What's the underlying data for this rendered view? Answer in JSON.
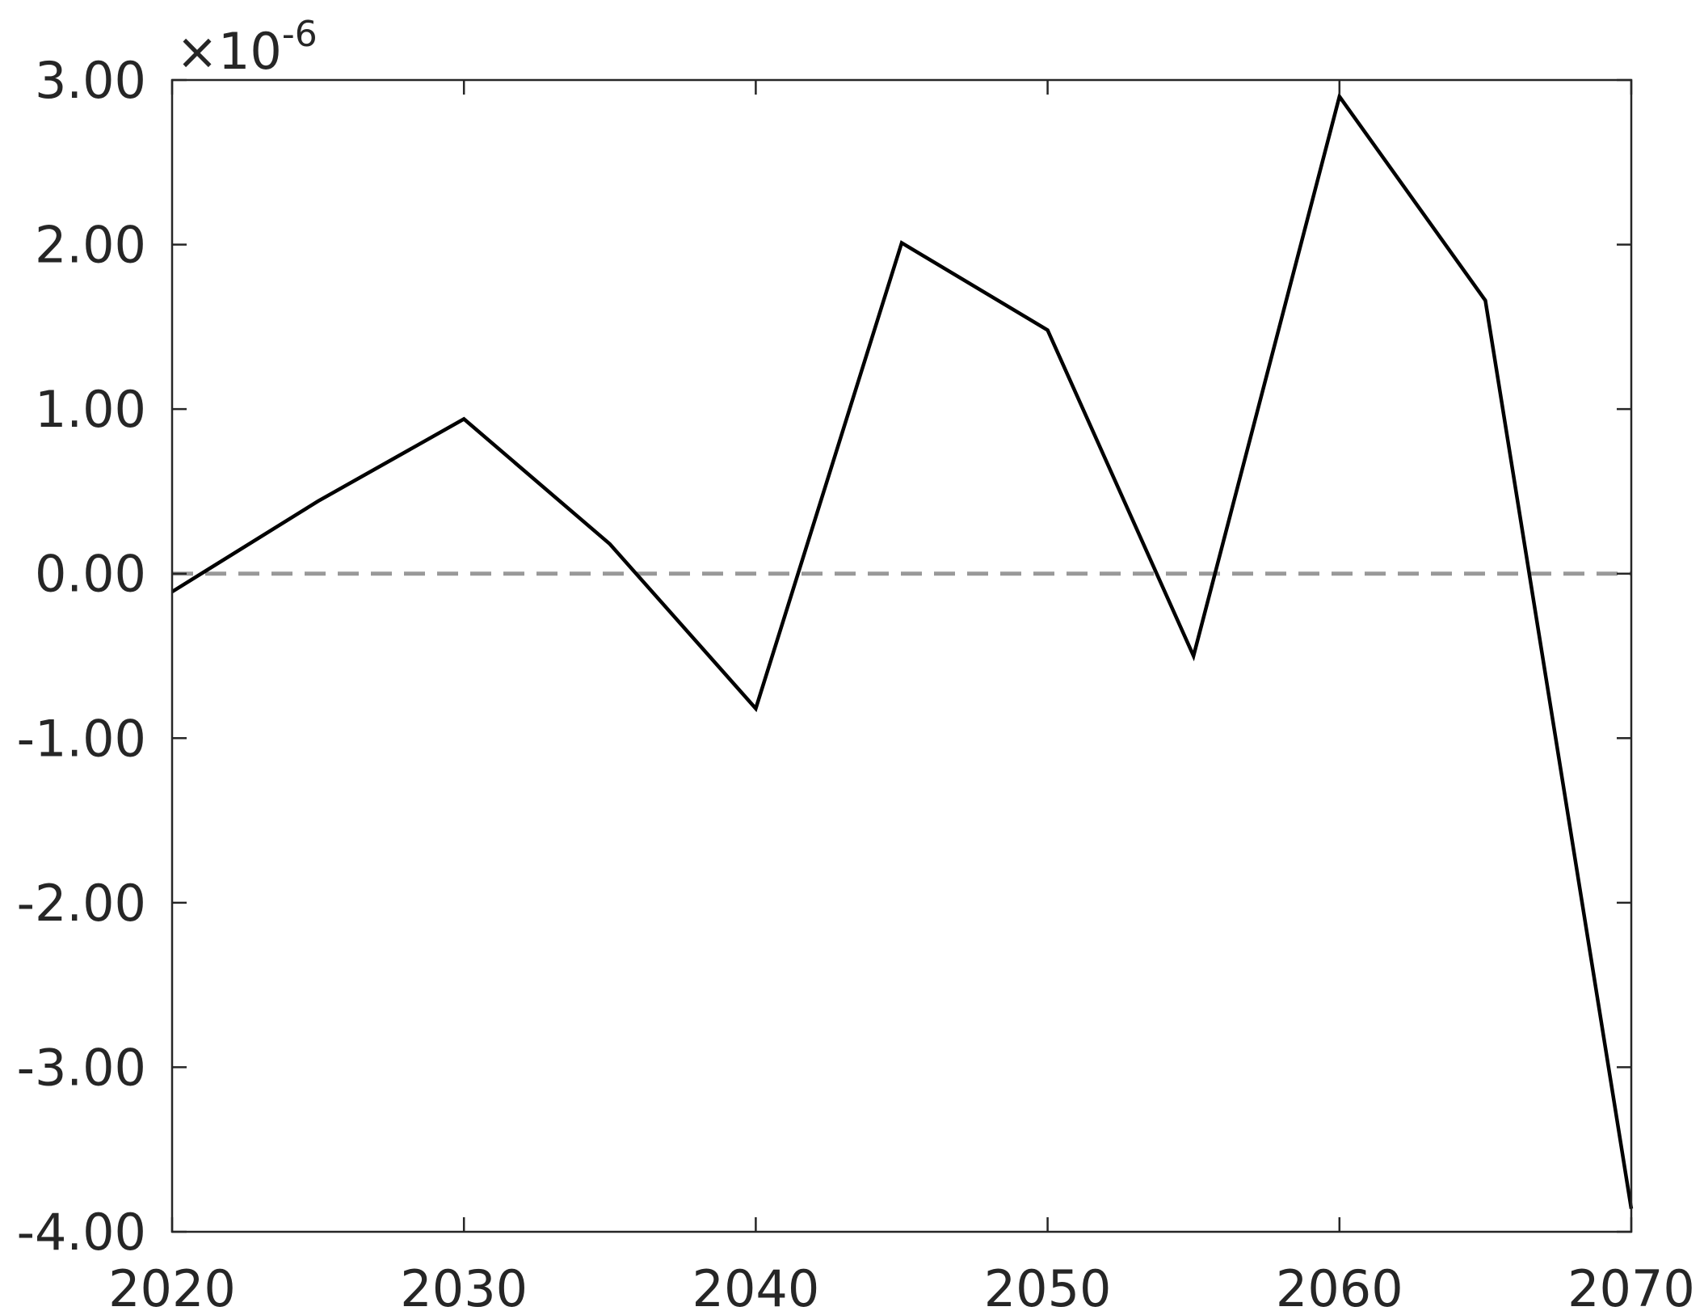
{
  "chart_data": {
    "type": "line",
    "title": "",
    "xlabel": "",
    "ylabel": "",
    "x": [
      2020,
      2025,
      2030,
      2035,
      2040,
      2045,
      2050,
      2055,
      2060,
      2065,
      2070
    ],
    "series": [
      {
        "values": [
          -0.11,
          0.44,
          0.94,
          0.18,
          -0.82,
          2.01,
          1.48,
          -0.5,
          2.9,
          1.66,
          -3.86
        ],
        "color": "#000000"
      }
    ],
    "reference_line": {
      "y": 0,
      "style": "dashed",
      "color": "#999999"
    },
    "xlim": [
      2020,
      2070
    ],
    "ylim": [
      -4,
      3
    ],
    "x_ticks": [
      "2020",
      "2030",
      "2040",
      "2050",
      "2060",
      "2070"
    ],
    "y_ticks": [
      "3.00",
      "2.00",
      "1.00",
      "0.00",
      "-1.00",
      "-2.00",
      "-3.00",
      "-4.00"
    ],
    "y_exponent_prefix": "×10",
    "y_exponent_power": "-6",
    "grid": false,
    "legend": "none"
  }
}
